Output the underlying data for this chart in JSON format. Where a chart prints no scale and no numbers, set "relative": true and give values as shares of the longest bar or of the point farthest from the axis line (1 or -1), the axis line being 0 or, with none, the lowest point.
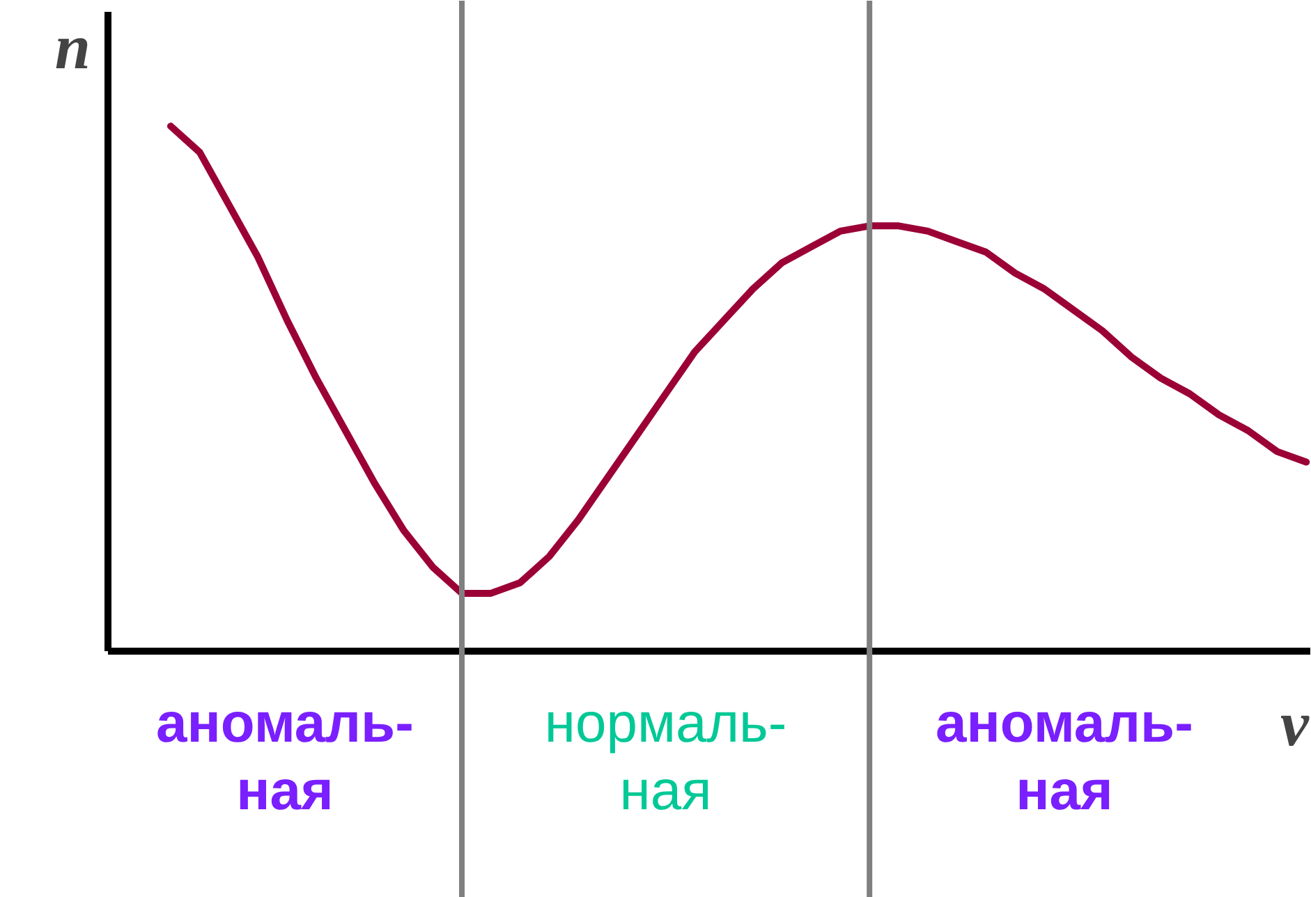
{
  "chart_data": {
    "type": "line",
    "relative": true,
    "xlabel": "ν",
    "ylabel": "n",
    "categories": [
      null,
      null,
      null,
      null,
      null,
      null,
      null,
      null,
      null,
      null,
      null,
      null,
      null,
      null,
      null,
      null,
      null,
      null,
      null,
      null,
      null,
      null,
      null,
      null,
      null,
      null,
      null,
      null,
      null,
      null,
      null,
      null,
      null,
      null,
      null,
      null,
      null,
      null,
      null,
      null
    ],
    "series": [
      {
        "color": "#9b0036",
        "values": [
          1.0,
          0.95,
          0.85,
          0.75,
          0.63,
          0.52,
          0.42,
          0.32,
          0.23,
          0.16,
          0.11,
          0.11,
          0.13,
          0.18,
          0.25,
          0.33,
          0.41,
          0.49,
          0.57,
          0.63,
          0.69,
          0.74,
          0.77,
          0.8,
          0.81,
          0.81,
          0.8,
          0.78,
          0.76,
          0.72,
          0.69,
          0.65,
          0.61,
          0.56,
          0.52,
          0.49,
          0.45,
          0.42,
          0.38,
          0.36
        ]
      }
    ],
    "annotations": [
      "аномаль-\nная",
      "нормаль-\nная",
      "аномаль-\nная"
    ],
    "grid": false
  }
}
